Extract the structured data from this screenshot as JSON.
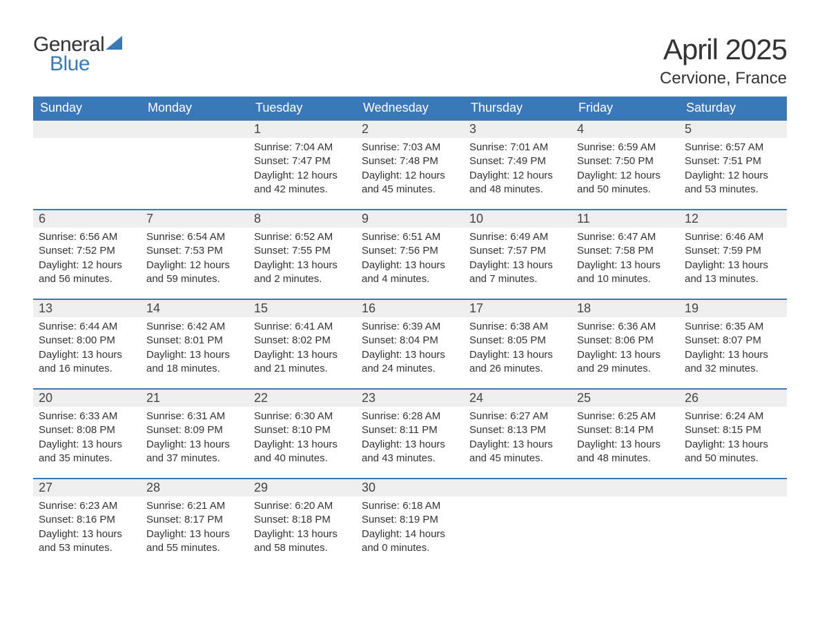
{
  "brand": {
    "word1": "General",
    "word2": "Blue",
    "word1_color": "#333333",
    "word2_color": "#3b78b8",
    "sail_color": "#3b78b8"
  },
  "title": {
    "month_year": "April 2025",
    "location": "Cervione, France",
    "title_fontsize": 42,
    "location_fontsize": 24
  },
  "calendar": {
    "type": "table",
    "header_bg": "#3b78b8",
    "header_fg": "#ffffff",
    "daynum_bg": "#eeeeee",
    "row_border_color": "#3b78b8",
    "text_color": "#333333",
    "body_fontsize": 15,
    "columns": [
      "Sunday",
      "Monday",
      "Tuesday",
      "Wednesday",
      "Thursday",
      "Friday",
      "Saturday"
    ],
    "weeks": [
      [
        null,
        null,
        {
          "day": "1",
          "sunrise": "7:04 AM",
          "sunset": "7:47 PM",
          "daylight": "12 hours and 42 minutes."
        },
        {
          "day": "2",
          "sunrise": "7:03 AM",
          "sunset": "7:48 PM",
          "daylight": "12 hours and 45 minutes."
        },
        {
          "day": "3",
          "sunrise": "7:01 AM",
          "sunset": "7:49 PM",
          "daylight": "12 hours and 48 minutes."
        },
        {
          "day": "4",
          "sunrise": "6:59 AM",
          "sunset": "7:50 PM",
          "daylight": "12 hours and 50 minutes."
        },
        {
          "day": "5",
          "sunrise": "6:57 AM",
          "sunset": "7:51 PM",
          "daylight": "12 hours and 53 minutes."
        }
      ],
      [
        {
          "day": "6",
          "sunrise": "6:56 AM",
          "sunset": "7:52 PM",
          "daylight": "12 hours and 56 minutes."
        },
        {
          "day": "7",
          "sunrise": "6:54 AM",
          "sunset": "7:53 PM",
          "daylight": "12 hours and 59 minutes."
        },
        {
          "day": "8",
          "sunrise": "6:52 AM",
          "sunset": "7:55 PM",
          "daylight": "13 hours and 2 minutes."
        },
        {
          "day": "9",
          "sunrise": "6:51 AM",
          "sunset": "7:56 PM",
          "daylight": "13 hours and 4 minutes."
        },
        {
          "day": "10",
          "sunrise": "6:49 AM",
          "sunset": "7:57 PM",
          "daylight": "13 hours and 7 minutes."
        },
        {
          "day": "11",
          "sunrise": "6:47 AM",
          "sunset": "7:58 PM",
          "daylight": "13 hours and 10 minutes."
        },
        {
          "day": "12",
          "sunrise": "6:46 AM",
          "sunset": "7:59 PM",
          "daylight": "13 hours and 13 minutes."
        }
      ],
      [
        {
          "day": "13",
          "sunrise": "6:44 AM",
          "sunset": "8:00 PM",
          "daylight": "13 hours and 16 minutes."
        },
        {
          "day": "14",
          "sunrise": "6:42 AM",
          "sunset": "8:01 PM",
          "daylight": "13 hours and 18 minutes."
        },
        {
          "day": "15",
          "sunrise": "6:41 AM",
          "sunset": "8:02 PM",
          "daylight": "13 hours and 21 minutes."
        },
        {
          "day": "16",
          "sunrise": "6:39 AM",
          "sunset": "8:04 PM",
          "daylight": "13 hours and 24 minutes."
        },
        {
          "day": "17",
          "sunrise": "6:38 AM",
          "sunset": "8:05 PM",
          "daylight": "13 hours and 26 minutes."
        },
        {
          "day": "18",
          "sunrise": "6:36 AM",
          "sunset": "8:06 PM",
          "daylight": "13 hours and 29 minutes."
        },
        {
          "day": "19",
          "sunrise": "6:35 AM",
          "sunset": "8:07 PM",
          "daylight": "13 hours and 32 minutes."
        }
      ],
      [
        {
          "day": "20",
          "sunrise": "6:33 AM",
          "sunset": "8:08 PM",
          "daylight": "13 hours and 35 minutes."
        },
        {
          "day": "21",
          "sunrise": "6:31 AM",
          "sunset": "8:09 PM",
          "daylight": "13 hours and 37 minutes."
        },
        {
          "day": "22",
          "sunrise": "6:30 AM",
          "sunset": "8:10 PM",
          "daylight": "13 hours and 40 minutes."
        },
        {
          "day": "23",
          "sunrise": "6:28 AM",
          "sunset": "8:11 PM",
          "daylight": "13 hours and 43 minutes."
        },
        {
          "day": "24",
          "sunrise": "6:27 AM",
          "sunset": "8:13 PM",
          "daylight": "13 hours and 45 minutes."
        },
        {
          "day": "25",
          "sunrise": "6:25 AM",
          "sunset": "8:14 PM",
          "daylight": "13 hours and 48 minutes."
        },
        {
          "day": "26",
          "sunrise": "6:24 AM",
          "sunset": "8:15 PM",
          "daylight": "13 hours and 50 minutes."
        }
      ],
      [
        {
          "day": "27",
          "sunrise": "6:23 AM",
          "sunset": "8:16 PM",
          "daylight": "13 hours and 53 minutes."
        },
        {
          "day": "28",
          "sunrise": "6:21 AM",
          "sunset": "8:17 PM",
          "daylight": "13 hours and 55 minutes."
        },
        {
          "day": "29",
          "sunrise": "6:20 AM",
          "sunset": "8:18 PM",
          "daylight": "13 hours and 58 minutes."
        },
        {
          "day": "30",
          "sunrise": "6:18 AM",
          "sunset": "8:19 PM",
          "daylight": "14 hours and 0 minutes."
        },
        null,
        null,
        null
      ]
    ],
    "labels": {
      "sunrise_prefix": "Sunrise: ",
      "sunset_prefix": "Sunset: ",
      "daylight_prefix": "Daylight: "
    }
  }
}
